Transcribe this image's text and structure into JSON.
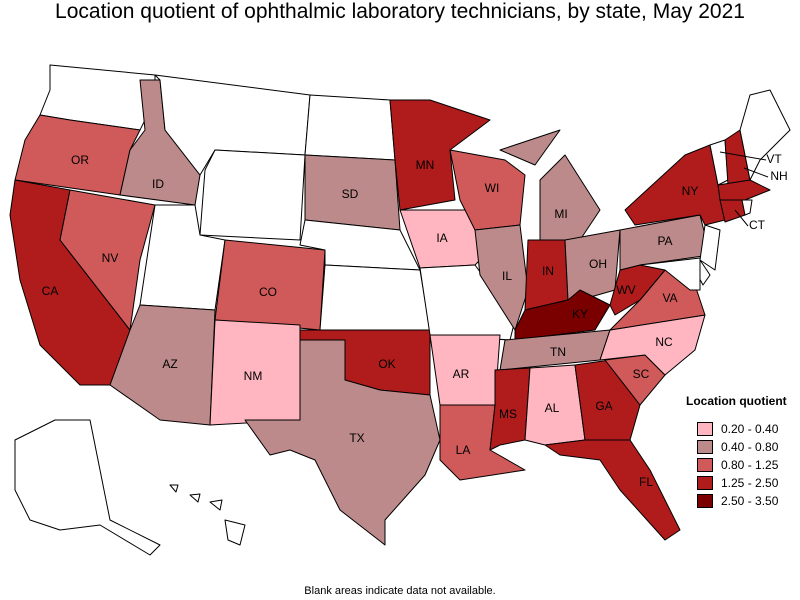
{
  "title": "Location quotient of ophthalmic laboratory technicians, by state, May 2021",
  "footnote": "Blank areas indicate data not available.",
  "legend": {
    "title": "Location quotient",
    "items": [
      {
        "label": "0.20 - 0.40",
        "color": "#ffb6c1"
      },
      {
        "label": "0.40 - 0.80",
        "color": "#bc8a8a"
      },
      {
        "label": "0.80 - 1.25",
        "color": "#d05a5a"
      },
      {
        "label": "1.25 - 2.50",
        "color": "#b01c1c"
      },
      {
        "label": "2.50 - 3.50",
        "color": "#7a0000"
      }
    ]
  },
  "nodata_color": "#ffffff",
  "states": [
    {
      "abbr": "WA",
      "class": null
    },
    {
      "abbr": "OR",
      "class": 2
    },
    {
      "abbr": "CA",
      "class": 3
    },
    {
      "abbr": "NV",
      "class": 2
    },
    {
      "abbr": "ID",
      "class": 1
    },
    {
      "abbr": "MT",
      "class": null
    },
    {
      "abbr": "WY",
      "class": null
    },
    {
      "abbr": "UT",
      "class": null
    },
    {
      "abbr": "AZ",
      "class": 1
    },
    {
      "abbr": "CO",
      "class": 2
    },
    {
      "abbr": "NM",
      "class": 0
    },
    {
      "abbr": "ND",
      "class": null
    },
    {
      "abbr": "SD",
      "class": 1
    },
    {
      "abbr": "NE",
      "class": null
    },
    {
      "abbr": "KS",
      "class": null
    },
    {
      "abbr": "OK",
      "class": 3
    },
    {
      "abbr": "TX",
      "class": 1
    },
    {
      "abbr": "MN",
      "class": 3
    },
    {
      "abbr": "IA",
      "class": 0
    },
    {
      "abbr": "MO",
      "class": null
    },
    {
      "abbr": "AR",
      "class": 0
    },
    {
      "abbr": "LA",
      "class": 2
    },
    {
      "abbr": "WI",
      "class": 2
    },
    {
      "abbr": "IL",
      "class": 1
    },
    {
      "abbr": "MI",
      "class": 1
    },
    {
      "abbr": "IN",
      "class": 3
    },
    {
      "abbr": "OH",
      "class": 1
    },
    {
      "abbr": "KY",
      "class": 4
    },
    {
      "abbr": "TN",
      "class": 1
    },
    {
      "abbr": "MS",
      "class": 3
    },
    {
      "abbr": "AL",
      "class": 0
    },
    {
      "abbr": "GA",
      "class": 3
    },
    {
      "abbr": "FL",
      "class": 3
    },
    {
      "abbr": "SC",
      "class": 2
    },
    {
      "abbr": "NC",
      "class": 0
    },
    {
      "abbr": "VA",
      "class": 2
    },
    {
      "abbr": "WV",
      "class": 3
    },
    {
      "abbr": "PA",
      "class": 1
    },
    {
      "abbr": "NY",
      "class": 3
    },
    {
      "abbr": "VT",
      "class": null
    },
    {
      "abbr": "NH",
      "class": 3
    },
    {
      "abbr": "ME",
      "class": null
    },
    {
      "abbr": "MA",
      "class": 3
    },
    {
      "abbr": "CT",
      "class": 3
    },
    {
      "abbr": "RI",
      "class": null
    },
    {
      "abbr": "NJ",
      "class": null
    },
    {
      "abbr": "DE",
      "class": null
    },
    {
      "abbr": "MD",
      "class": null
    },
    {
      "abbr": "AK",
      "class": null
    },
    {
      "abbr": "HI",
      "class": null
    }
  ]
}
